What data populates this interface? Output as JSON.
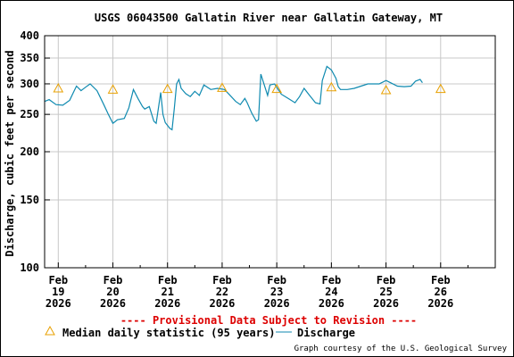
{
  "chart_data": {
    "type": "line",
    "title": "USGS 06043500 Gallatin River near Gallatin Gateway, MT",
    "ylabel": "Discharge, cubic feet per second",
    "xlabel": "",
    "y_scale": "log",
    "ylim": [
      100,
      400
    ],
    "y_ticks": [
      {
        "value": 100,
        "label": "100"
      },
      {
        "value": 150,
        "label": "150"
      },
      {
        "value": 200,
        "label": "200"
      },
      {
        "value": 250,
        "label": "250"
      },
      {
        "value": 300,
        "label": "300"
      },
      {
        "value": 350,
        "label": "350"
      },
      {
        "value": 400,
        "label": "400"
      }
    ],
    "x_range": [
      "2026-02-18 18:00",
      "2026-02-27 00:00"
    ],
    "x_ticks": [
      {
        "date": "2026-02-19",
        "line1": "Feb",
        "line2": "19",
        "line3": "2026"
      },
      {
        "date": "2026-02-20",
        "line1": "Feb",
        "line2": "20",
        "line3": "2026"
      },
      {
        "date": "2026-02-21",
        "line1": "Feb",
        "line2": "21",
        "line3": "2026"
      },
      {
        "date": "2026-02-22",
        "line1": "Feb",
        "line2": "22",
        "line3": "2026"
      },
      {
        "date": "2026-02-23",
        "line1": "Feb",
        "line2": "23",
        "line3": "2026"
      },
      {
        "date": "2026-02-24",
        "line1": "Feb",
        "line2": "24",
        "line3": "2026"
      },
      {
        "date": "2026-02-25",
        "line1": "Feb",
        "line2": "25",
        "line3": "2026"
      },
      {
        "date": "2026-02-26",
        "line1": "Feb",
        "line2": "26",
        "line3": "2026"
      }
    ],
    "grid": true,
    "series": [
      {
        "name": "Discharge",
        "color": "#0f8ab0",
        "points": [
          [
            "2026-02-18 18:00",
            270
          ],
          [
            "2026-02-18 20:00",
            273
          ],
          [
            "2026-02-18 23:00",
            265
          ],
          [
            "2026-02-19 02:00",
            264
          ],
          [
            "2026-02-19 05:00",
            272
          ],
          [
            "2026-02-19 07:00",
            288
          ],
          [
            "2026-02-19 08:00",
            296
          ],
          [
            "2026-02-19 10:00",
            288
          ],
          [
            "2026-02-19 12:00",
            294
          ],
          [
            "2026-02-19 14:00",
            300
          ],
          [
            "2026-02-19 17:00",
            288
          ],
          [
            "2026-02-19 20:00",
            265
          ],
          [
            "2026-02-19 22:00",
            250
          ],
          [
            "2026-02-20 00:00",
            237
          ],
          [
            "2026-02-20 02:00",
            242
          ],
          [
            "2026-02-20 05:00",
            244
          ],
          [
            "2026-02-20 07:00",
            260
          ],
          [
            "2026-02-20 09:00",
            290
          ],
          [
            "2026-02-20 11:00",
            275
          ],
          [
            "2026-02-20 13:00",
            262
          ],
          [
            "2026-02-20 14:00",
            258
          ],
          [
            "2026-02-20 16:00",
            262
          ],
          [
            "2026-02-20 18:00",
            240
          ],
          [
            "2026-02-20 19:00",
            237
          ],
          [
            "2026-02-20 21:00",
            285
          ],
          [
            "2026-02-20 22:00",
            250
          ],
          [
            "2026-02-20 23:00",
            238
          ],
          [
            "2026-02-21 01:00",
            230
          ],
          [
            "2026-02-21 02:00",
            228
          ],
          [
            "2026-02-21 03:00",
            260
          ],
          [
            "2026-02-21 04:00",
            300
          ],
          [
            "2026-02-21 05:00",
            308
          ],
          [
            "2026-02-21 06:00",
            292
          ],
          [
            "2026-02-21 08:00",
            283
          ],
          [
            "2026-02-21 10:00",
            278
          ],
          [
            "2026-02-21 12:00",
            287
          ],
          [
            "2026-02-21 14:00",
            280
          ],
          [
            "2026-02-21 16:00",
            298
          ],
          [
            "2026-02-21 19:00",
            290
          ],
          [
            "2026-02-21 22:00",
            292
          ],
          [
            "2026-02-22 01:00",
            290
          ],
          [
            "2026-02-22 03:00",
            282
          ],
          [
            "2026-02-22 06:00",
            270
          ],
          [
            "2026-02-22 08:00",
            265
          ],
          [
            "2026-02-22 10:00",
            275
          ],
          [
            "2026-02-22 11:00",
            268
          ],
          [
            "2026-02-22 13:00",
            252
          ],
          [
            "2026-02-22 15:00",
            240
          ],
          [
            "2026-02-22 16:00",
            242
          ],
          [
            "2026-02-22 17:00",
            318
          ],
          [
            "2026-02-22 18:00",
            305
          ],
          [
            "2026-02-22 20:00",
            280
          ],
          [
            "2026-02-22 21:00",
            298
          ],
          [
            "2026-02-22 23:00",
            300
          ],
          [
            "2026-02-23 02:00",
            282
          ],
          [
            "2026-02-23 05:00",
            275
          ],
          [
            "2026-02-23 08:00",
            268
          ],
          [
            "2026-02-23 10:00",
            278
          ],
          [
            "2026-02-23 12:00",
            292
          ],
          [
            "2026-02-23 14:00",
            282
          ],
          [
            "2026-02-23 17:00",
            268
          ],
          [
            "2026-02-23 19:00",
            266
          ],
          [
            "2026-02-23 20:00",
            306
          ],
          [
            "2026-02-23 22:00",
            333
          ],
          [
            "2026-02-24 00:00",
            326
          ],
          [
            "2026-02-24 02:00",
            310
          ],
          [
            "2026-02-24 03:00",
            295
          ],
          [
            "2026-02-24 04:00",
            290
          ],
          [
            "2026-02-24 07:00",
            290
          ],
          [
            "2026-02-24 10:00",
            292
          ],
          [
            "2026-02-24 13:00",
            296
          ],
          [
            "2026-02-24 16:00",
            300
          ],
          [
            "2026-02-24 18:00",
            300
          ],
          [
            "2026-02-24 21:00",
            300
          ],
          [
            "2026-02-25 00:00",
            306
          ],
          [
            "2026-02-25 02:00",
            302
          ],
          [
            "2026-02-25 05:00",
            296
          ],
          [
            "2026-02-25 08:00",
            295
          ],
          [
            "2026-02-25 11:00",
            296
          ],
          [
            "2026-02-25 13:00",
            305
          ],
          [
            "2026-02-25 15:00",
            308
          ],
          [
            "2026-02-25 16:00",
            302
          ]
        ]
      },
      {
        "name": "Median daily statistic (95 years)",
        "color": "#e8a000",
        "marker": "triangle",
        "points": [
          [
            "2026-02-19",
            292
          ],
          [
            "2026-02-20",
            290
          ],
          [
            "2026-02-21",
            291
          ],
          [
            "2026-02-22",
            293
          ],
          [
            "2026-02-23",
            291
          ],
          [
            "2026-02-24",
            294
          ],
          [
            "2026-02-25",
            289
          ],
          [
            "2026-02-26",
            291
          ]
        ]
      }
    ],
    "provisional_note": "---- Provisional Data Subject to Revision ----",
    "legend": {
      "placement": "bottom",
      "median_label": "Median daily statistic (95 years)",
      "discharge_label": "Discharge"
    },
    "credit": "Graph courtesy of the U.S. Geological Survey"
  }
}
